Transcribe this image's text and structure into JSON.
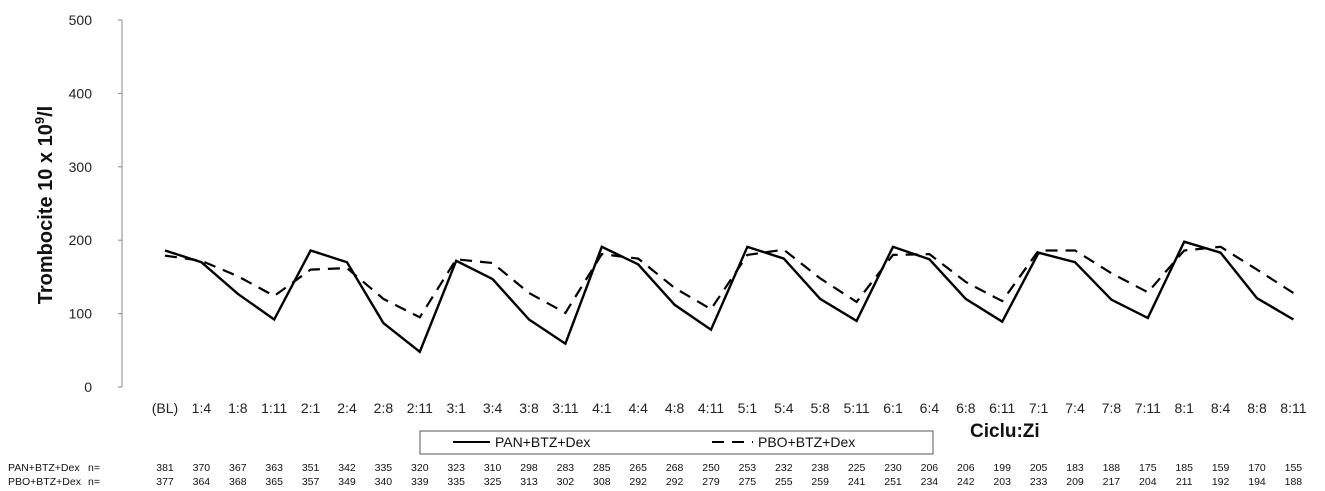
{
  "chart_data": {
    "type": "line",
    "ylabel_main": "Trombocite 10 x 10",
    "ylabel_sup": "9",
    "ylabel_end": "/l",
    "xlabel": "Ciclu:Zi",
    "ylim": [
      0,
      500
    ],
    "yticks": [
      "0",
      "100",
      "200",
      "300",
      "400",
      "500"
    ],
    "categories": [
      "(BL)",
      "1:4",
      "1:8",
      "1:11",
      "2:1",
      "2:4",
      "2:8",
      "2:11",
      "3:1",
      "3:4",
      "3:8",
      "3:11",
      "4:1",
      "4:4",
      "4:8",
      "4:11",
      "5:1",
      "5:4",
      "5:8",
      "5:11",
      "6:1",
      "6:4",
      "6:8",
      "6:11",
      "7:1",
      "7:4",
      "7:8",
      "7:11",
      "8:1",
      "8:4",
      "8:8",
      "8:11"
    ],
    "legend_position": "bottom-center",
    "series": [
      {
        "name": "PAN+BTZ+Dex",
        "style": "solid",
        "color": "#000000",
        "values": [
          186,
          170,
          127,
          92,
          186,
          170,
          87,
          48,
          172,
          147,
          92,
          59,
          191,
          167,
          112,
          78,
          191,
          175,
          120,
          90,
          191,
          174,
          120,
          89,
          183,
          170,
          119,
          94,
          198,
          183,
          121,
          92
        ]
      },
      {
        "name": "PBO+BTZ+Dex",
        "style": "dashed",
        "color": "#000000",
        "values": [
          179,
          172,
          151,
          124,
          160,
          162,
          120,
          95,
          174,
          169,
          128,
          101,
          181,
          175,
          135,
          106,
          180,
          187,
          148,
          116,
          180,
          181,
          143,
          117,
          186,
          186,
          155,
          129,
          186,
          191,
          160,
          128
        ]
      }
    ],
    "n_table": {
      "header": "n=",
      "rows": [
        {
          "label": "PAN+BTZ+Dex",
          "values": [
            "381",
            "370",
            "367",
            "363",
            "351",
            "342",
            "335",
            "320",
            "323",
            "310",
            "298",
            "283",
            "285",
            "265",
            "268",
            "250",
            "253",
            "232",
            "238",
            "225",
            "230",
            "206",
            "206",
            "199",
            "205",
            "183",
            "188",
            "175",
            "185",
            "159",
            "170",
            "155"
          ]
        },
        {
          "label": "PBO+BTZ+Dex",
          "values": [
            "377",
            "364",
            "368",
            "365",
            "357",
            "349",
            "340",
            "339",
            "335",
            "325",
            "313",
            "302",
            "308",
            "292",
            "292",
            "279",
            "275",
            "255",
            "259",
            "241",
            "251",
            "234",
            "242",
            "203",
            "233",
            "209",
            "217",
            "204",
            "211",
            "192",
            "194",
            "188"
          ]
        }
      ]
    }
  }
}
